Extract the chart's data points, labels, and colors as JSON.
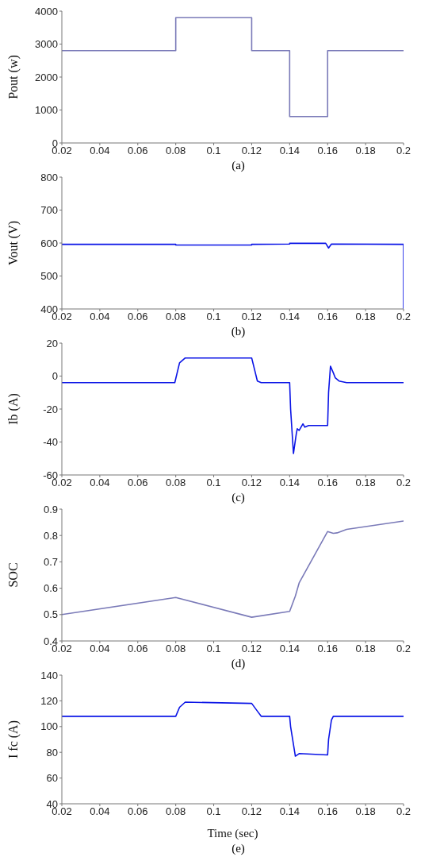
{
  "chart_data": [
    {
      "type": "line",
      "ylabel": "Pout (w)",
      "annotations": [
        "(a)"
      ],
      "xlim": [
        0.02,
        0.2
      ],
      "xticks": [
        0.02,
        0.04,
        0.06,
        0.08,
        0.1,
        0.12,
        0.14,
        0.16,
        0.18,
        0.2
      ],
      "ylim": [
        0,
        4000
      ],
      "yticks": [
        0,
        1000,
        2000,
        3000,
        4000
      ],
      "grid": false,
      "legend": false,
      "marker": "none",
      "line_style": "solid",
      "series": [
        {
          "color": "#7a7ab8",
          "x": [
            0.02,
            0.08,
            0.08,
            0.12,
            0.12,
            0.14,
            0.14,
            0.16,
            0.16,
            0.2
          ],
          "values": [
            2800,
            2800,
            3800,
            3800,
            2800,
            2800,
            800,
            800,
            2800,
            2800
          ]
        }
      ]
    },
    {
      "type": "line",
      "ylabel": "Vout (V)",
      "annotations": [
        "(b)"
      ],
      "xlim": [
        0.02,
        0.2
      ],
      "xticks": [
        0.02,
        0.04,
        0.06,
        0.08,
        0.1,
        0.12,
        0.14,
        0.16,
        0.18,
        0.2
      ],
      "ylim": [
        400,
        800
      ],
      "yticks": [
        400,
        500,
        600,
        700,
        800
      ],
      "grid": false,
      "legend": false,
      "marker": "none",
      "line_style": "solid",
      "series": [
        {
          "color": "#0a14e6",
          "x": [
            0.02,
            0.08,
            0.08,
            0.12,
            0.12,
            0.14,
            0.14,
            0.159,
            0.1605,
            0.162,
            0.2,
            0.2
          ],
          "values": [
            596,
            596,
            594,
            594,
            596,
            597,
            599,
            599,
            585,
            597,
            596,
            400
          ]
        }
      ]
    },
    {
      "type": "line",
      "ylabel": "Ib (A)",
      "annotations": [
        "(c)"
      ],
      "xlim": [
        0.02,
        0.2
      ],
      "xticks": [
        0.02,
        0.04,
        0.06,
        0.08,
        0.1,
        0.12,
        0.14,
        0.16,
        0.18,
        0.2
      ],
      "ylim": [
        -60,
        20
      ],
      "yticks": [
        -60,
        -40,
        -20,
        0,
        20
      ],
      "grid": false,
      "legend": false,
      "marker": "none",
      "line_style": "solid",
      "series": [
        {
          "color": "#0a14e6",
          "x": [
            0.02,
            0.0795,
            0.082,
            0.085,
            0.12,
            0.123,
            0.125,
            0.14,
            0.1405,
            0.142,
            0.1435,
            0.144,
            0.145,
            0.147,
            0.148,
            0.15,
            0.16,
            0.1605,
            0.1615,
            0.163,
            0.164,
            0.166,
            0.17,
            0.2
          ],
          "values": [
            -4,
            -4,
            8,
            11,
            11,
            -3,
            -4,
            -4,
            -20,
            -47,
            -35,
            -32,
            -33,
            -29,
            -31,
            -30,
            -30,
            -10,
            6,
            2,
            -1,
            -3,
            -4,
            -4
          ]
        }
      ]
    },
    {
      "type": "line",
      "ylabel": "SOC",
      "annotations": [
        "(d)"
      ],
      "xlim": [
        0.02,
        0.2
      ],
      "xticks": [
        0.02,
        0.04,
        0.06,
        0.08,
        0.1,
        0.12,
        0.14,
        0.16,
        0.18,
        0.2
      ],
      "ylim": [
        0.4,
        0.9
      ],
      "yticks": [
        0.4,
        0.5,
        0.6,
        0.7,
        0.8,
        0.9
      ],
      "grid": false,
      "legend": false,
      "marker": "none",
      "line_style": "solid",
      "series": [
        {
          "color": "#7a7ab8",
          "x": [
            0.02,
            0.08,
            0.12,
            0.14,
            0.143,
            0.145,
            0.16,
            0.163,
            0.165,
            0.17,
            0.2
          ],
          "values": [
            0.5,
            0.565,
            0.49,
            0.512,
            0.57,
            0.62,
            0.815,
            0.808,
            0.81,
            0.823,
            0.855
          ]
        }
      ]
    },
    {
      "type": "line",
      "xlabel": "Time (sec)",
      "ylabel": "I fc (A)",
      "annotations": [
        "(e)"
      ],
      "xlim": [
        0.02,
        0.2
      ],
      "xticks": [
        0.02,
        0.04,
        0.06,
        0.08,
        0.1,
        0.12,
        0.14,
        0.16,
        0.18,
        0.2
      ],
      "ylim": [
        40,
        140
      ],
      "yticks": [
        40,
        60,
        80,
        100,
        120,
        140
      ],
      "grid": false,
      "legend": false,
      "marker": "none",
      "line_style": "solid",
      "series": [
        {
          "color": "#0a14e6",
          "x": [
            0.02,
            0.08,
            0.082,
            0.085,
            0.12,
            0.123,
            0.125,
            0.14,
            0.1405,
            0.143,
            0.145,
            0.16,
            0.1605,
            0.162,
            0.163,
            0.17,
            0.2
          ],
          "values": [
            108,
            108,
            115,
            119,
            118,
            112,
            108,
            108,
            100,
            77,
            79,
            78,
            90,
            105,
            108,
            108,
            108
          ]
        }
      ]
    }
  ]
}
